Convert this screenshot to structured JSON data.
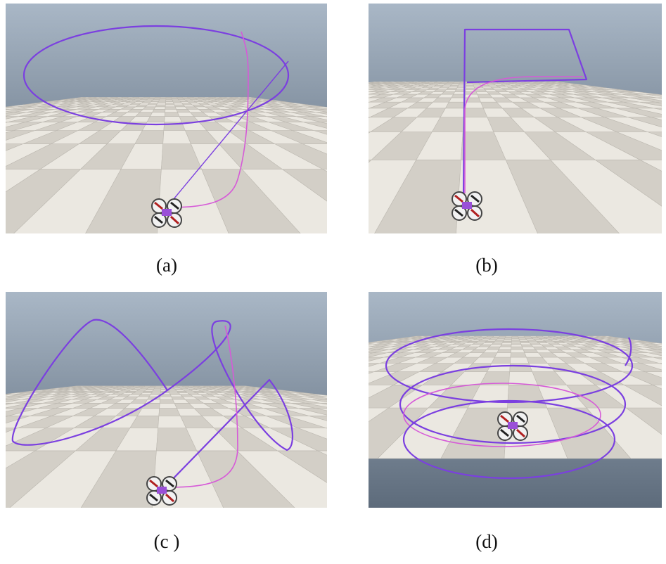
{
  "panels": [
    {
      "caption": "(a)"
    },
    {
      "caption": "(b)"
    },
    {
      "caption": "(c )"
    },
    {
      "caption": "(d)"
    }
  ]
}
